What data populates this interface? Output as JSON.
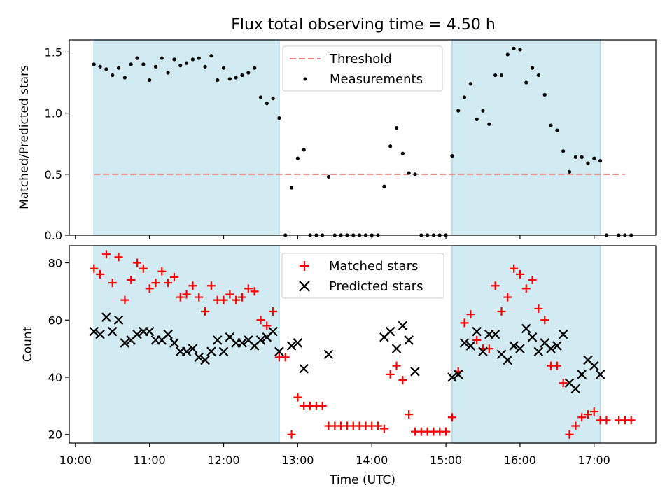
{
  "chart_data": [
    {
      "type": "scatter",
      "title": "Flux total observing time = 4.50 h",
      "ylabel": "Matched/Predicted stars",
      "xlabel": "",
      "xlim": [
        "09:55",
        "17:50"
      ],
      "ylim": [
        0,
        1.6
      ],
      "yticks": [
        "0.0",
        "0.5",
        "1.0",
        "1.5"
      ],
      "legend": {
        "placement": "top-center"
      },
      "shaded_intervals": [
        [
          "10:15",
          "12:45"
        ],
        [
          "15:05",
          "17:05"
        ]
      ],
      "shade_color": "#add8e6",
      "series": [
        {
          "name": "Threshold",
          "style": "dashed-line",
          "color": "#f08080",
          "x": [
            "10:15",
            "17:25"
          ],
          "y": [
            0.5,
            0.5
          ]
        },
        {
          "name": "Measurements",
          "style": "dot",
          "color": "#000000",
          "x": [
            "10:15",
            "10:20",
            "10:25",
            "10:30",
            "10:35",
            "10:40",
            "10:45",
            "10:50",
            "10:55",
            "11:00",
            "11:05",
            "11:10",
            "11:15",
            "11:20",
            "11:25",
            "11:30",
            "11:35",
            "11:40",
            "11:45",
            "11:50",
            "11:55",
            "12:00",
            "12:05",
            "12:10",
            "12:15",
            "12:20",
            "12:25",
            "12:30",
            "12:35",
            "12:40",
            "12:45",
            "12:50",
            "12:55",
            "13:00",
            "13:05",
            "13:10",
            "13:15",
            "13:20",
            "13:25",
            "13:30",
            "13:35",
            "13:40",
            "13:45",
            "13:50",
            "13:55",
            "14:00",
            "14:05",
            "14:10",
            "14:15",
            "14:20",
            "14:25",
            "14:30",
            "14:35",
            "14:40",
            "14:45",
            "14:50",
            "14:55",
            "15:00",
            "15:05",
            "15:10",
            "15:15",
            "15:20",
            "15:25",
            "15:30",
            "15:35",
            "15:40",
            "15:45",
            "15:50",
            "15:55",
            "16:00",
            "16:05",
            "16:10",
            "16:15",
            "16:20",
            "16:25",
            "16:30",
            "16:35",
            "16:40",
            "16:45",
            "16:50",
            "16:55",
            "17:00",
            "17:05",
            "17:10",
            "17:20",
            "17:25",
            "17:30"
          ],
          "y": [
            1.4,
            1.38,
            1.36,
            1.31,
            1.37,
            1.29,
            1.4,
            1.45,
            1.4,
            1.27,
            1.38,
            1.45,
            1.33,
            1.44,
            1.39,
            1.41,
            1.44,
            1.45,
            1.38,
            1.47,
            1.27,
            1.37,
            1.28,
            1.29,
            1.31,
            1.33,
            1.37,
            1.13,
            1.08,
            1.12,
            0.96,
            0,
            0.39,
            0.63,
            0.7,
            0,
            0,
            0,
            0.48,
            0,
            0,
            0,
            0,
            0,
            0,
            0,
            0,
            0.4,
            0.73,
            0.88,
            0.67,
            0.51,
            0.5,
            0,
            0,
            0,
            0,
            0,
            0.65,
            1.02,
            1.13,
            1.24,
            0.95,
            1.02,
            0.91,
            1.31,
            1.31,
            1.48,
            1.53,
            1.52,
            1.25,
            1.37,
            1.31,
            1.15,
            0.9,
            0.86,
            0.69,
            0.52,
            0.64,
            0.64,
            0.59,
            0.63,
            0.61,
            0,
            0,
            0,
            0
          ]
        }
      ]
    },
    {
      "type": "scatter",
      "title": "",
      "ylabel": "Count",
      "xlabel": "Time (UTC)",
      "xlim": [
        "09:55",
        "17:50"
      ],
      "xticks": [
        "10:00",
        "11:00",
        "12:00",
        "13:00",
        "14:00",
        "15:00",
        "16:00",
        "17:00"
      ],
      "ylim": [
        17,
        86
      ],
      "yticks": [
        "20",
        "40",
        "60",
        "80"
      ],
      "legend": {
        "placement": "top-center"
      },
      "shaded_intervals": [
        [
          "10:15",
          "12:45"
        ],
        [
          "15:05",
          "17:05"
        ]
      ],
      "shade_color": "#add8e6",
      "series": [
        {
          "name": "Matched stars",
          "marker": "plus",
          "color": "#ff0000",
          "x": [
            "10:15",
            "10:20",
            "10:25",
            "10:30",
            "10:35",
            "10:40",
            "10:45",
            "10:50",
            "10:55",
            "11:00",
            "11:05",
            "11:10",
            "11:15",
            "11:20",
            "11:25",
            "11:30",
            "11:35",
            "11:40",
            "11:45",
            "11:50",
            "11:55",
            "12:00",
            "12:05",
            "12:10",
            "12:15",
            "12:20",
            "12:25",
            "12:30",
            "12:35",
            "12:40",
            "12:45",
            "12:50",
            "12:55",
            "13:00",
            "13:05",
            "13:10",
            "13:15",
            "13:20",
            "13:25",
            "13:30",
            "13:35",
            "13:40",
            "13:45",
            "13:50",
            "13:55",
            "14:00",
            "14:05",
            "14:10",
            "14:15",
            "14:20",
            "14:25",
            "14:30",
            "14:35",
            "14:40",
            "14:45",
            "14:50",
            "14:55",
            "15:00",
            "15:05",
            "15:10",
            "15:15",
            "15:20",
            "15:25",
            "15:30",
            "15:35",
            "15:40",
            "15:45",
            "15:50",
            "15:55",
            "16:00",
            "16:05",
            "16:10",
            "16:15",
            "16:20",
            "16:25",
            "16:30",
            "16:35",
            "16:40",
            "16:45",
            "16:50",
            "16:55",
            "17:00",
            "17:05",
            "17:10",
            "17:20",
            "17:25",
            "17:30"
          ],
          "y": [
            78,
            76,
            83,
            73,
            82,
            67,
            74,
            80,
            78,
            71,
            73,
            77,
            73,
            75,
            68,
            69,
            72,
            68,
            63,
            72,
            67,
            67,
            69,
            67,
            68,
            71,
            70,
            60,
            58,
            63,
            47,
            47,
            20,
            33,
            30,
            30,
            30,
            30,
            23,
            23,
            23,
            23,
            23,
            23,
            23,
            23,
            23,
            22,
            41,
            44,
            39,
            27,
            21,
            21,
            21,
            21,
            21,
            21,
            26,
            42,
            59,
            62,
            53,
            50,
            50,
            72,
            63,
            68,
            78,
            76,
            71,
            74,
            64,
            60,
            44,
            44,
            38,
            20,
            23,
            26,
            27,
            28,
            25,
            25,
            25,
            25,
            25
          ]
        },
        {
          "name": "Predicted stars",
          "marker": "x",
          "color": "#000000",
          "x": [
            "10:15",
            "10:20",
            "10:25",
            "10:30",
            "10:35",
            "10:40",
            "10:45",
            "10:50",
            "10:55",
            "11:00",
            "11:05",
            "11:10",
            "11:15",
            "11:20",
            "11:25",
            "11:30",
            "11:35",
            "11:40",
            "11:45",
            "11:50",
            "11:55",
            "12:00",
            "12:05",
            "12:10",
            "12:15",
            "12:20",
            "12:25",
            "12:30",
            "12:35",
            "12:40",
            "12:45",
            "12:55",
            "13:00",
            "13:05",
            "13:25",
            "14:10",
            "14:15",
            "14:20",
            "14:25",
            "14:30",
            "14:35",
            "15:05",
            "15:10",
            "15:15",
            "15:20",
            "15:25",
            "15:30",
            "15:35",
            "15:40",
            "15:45",
            "15:50",
            "15:55",
            "16:00",
            "16:05",
            "16:10",
            "16:15",
            "16:20",
            "16:25",
            "16:30",
            "16:35",
            "16:40",
            "16:45",
            "16:50",
            "16:55",
            "17:00",
            "17:05"
          ],
          "y": [
            56,
            55,
            61,
            56,
            60,
            52,
            53,
            55,
            56,
            56,
            53,
            53,
            55,
            52,
            49,
            49,
            50,
            47,
            46,
            49,
            53,
            49,
            54,
            52,
            52,
            53,
            51,
            53,
            54,
            56,
            49,
            51,
            52,
            43,
            48,
            54,
            56,
            50,
            58,
            53,
            42,
            40,
            41,
            52,
            51,
            56,
            49,
            55,
            55,
            48,
            46,
            51,
            50,
            57,
            54,
            49,
            52,
            50,
            51,
            55,
            38,
            36,
            41,
            46,
            44,
            41
          ]
        }
      ]
    }
  ]
}
